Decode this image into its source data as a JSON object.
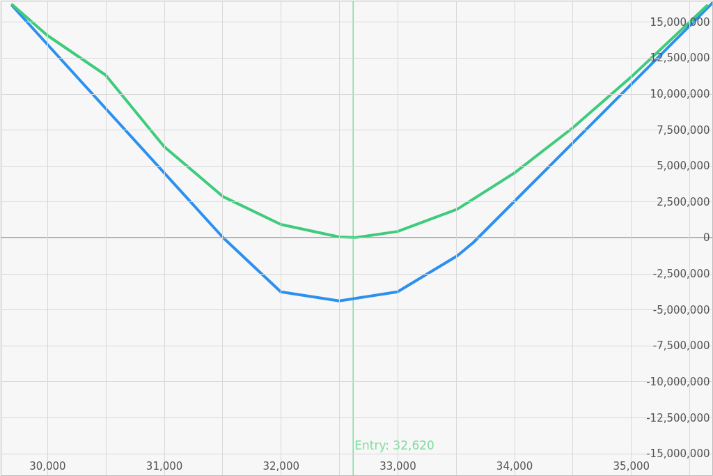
{
  "chart_data": {
    "type": "line",
    "xlim": [
      29601,
      35696
    ],
    "ylim": [
      -16520000,
      16470000
    ],
    "xticks": [
      {
        "value": 30000,
        "label": "30,000"
      },
      {
        "value": 30500,
        "label": null
      },
      {
        "value": 31000,
        "label": "31,000"
      },
      {
        "value": 31500,
        "label": null
      },
      {
        "value": 32000,
        "label": "32,000"
      },
      {
        "value": 32500,
        "label": null
      },
      {
        "value": 33000,
        "label": "33,000"
      },
      {
        "value": 33500,
        "label": null
      },
      {
        "value": 34000,
        "label": "34,000"
      },
      {
        "value": 34500,
        "label": null
      },
      {
        "value": 35000,
        "label": "35,000"
      },
      {
        "value": 35500,
        "label": null
      }
    ],
    "yticks": [
      {
        "value": -15000000,
        "label": "-15,000,000"
      },
      {
        "value": -12500000,
        "label": "-12,500,000"
      },
      {
        "value": -10000000,
        "label": "-10,000,000"
      },
      {
        "value": -7500000,
        "label": "-7,500,000"
      },
      {
        "value": -5000000,
        "label": "-5,000,000"
      },
      {
        "value": -2500000,
        "label": "-2,500,000"
      },
      0,
      {
        "value": 2500000,
        "label": "2,500,000"
      },
      {
        "value": 5000000,
        "label": "5,000,000"
      },
      {
        "value": 7500000,
        "label": "7,500,000"
      },
      {
        "value": 10000000,
        "label": "10,000,000"
      },
      {
        "value": 12500000,
        "label": "12,500,000"
      },
      {
        "value": 15000000,
        "label": "15,000,000"
      }
    ],
    "grid": true,
    "marker": "none",
    "line_style": "solid",
    "series": [
      {
        "color": "#2b90ef",
        "x": [
          29700,
          31506,
          32000,
          32500,
          33000,
          33512,
          33649,
          35696
        ],
        "values": [
          16120000,
          0,
          -3770000,
          -4400000,
          -3770000,
          -1260000,
          -340000,
          16300000
        ]
      },
      {
        "color": "#3ecb7c",
        "x": [
          29700,
          30000,
          30500,
          31000,
          31506,
          32000,
          32500,
          32637,
          33000,
          33512,
          34000,
          34500,
          35000,
          35650
        ],
        "values": [
          16190000,
          14060000,
          11300000,
          6330000,
          2850000,
          920000,
          50000,
          0,
          430000,
          1980000,
          4490000,
          7630000,
          11160000,
          16120000
        ]
      }
    ],
    "ref_lines": [
      {
        "axis": "x",
        "value": 32620,
        "label": "Entry: 32,620",
        "color": "#7fdc9f"
      },
      {
        "axis": "y",
        "value": 0,
        "color": "#5aa878"
      }
    ]
  }
}
